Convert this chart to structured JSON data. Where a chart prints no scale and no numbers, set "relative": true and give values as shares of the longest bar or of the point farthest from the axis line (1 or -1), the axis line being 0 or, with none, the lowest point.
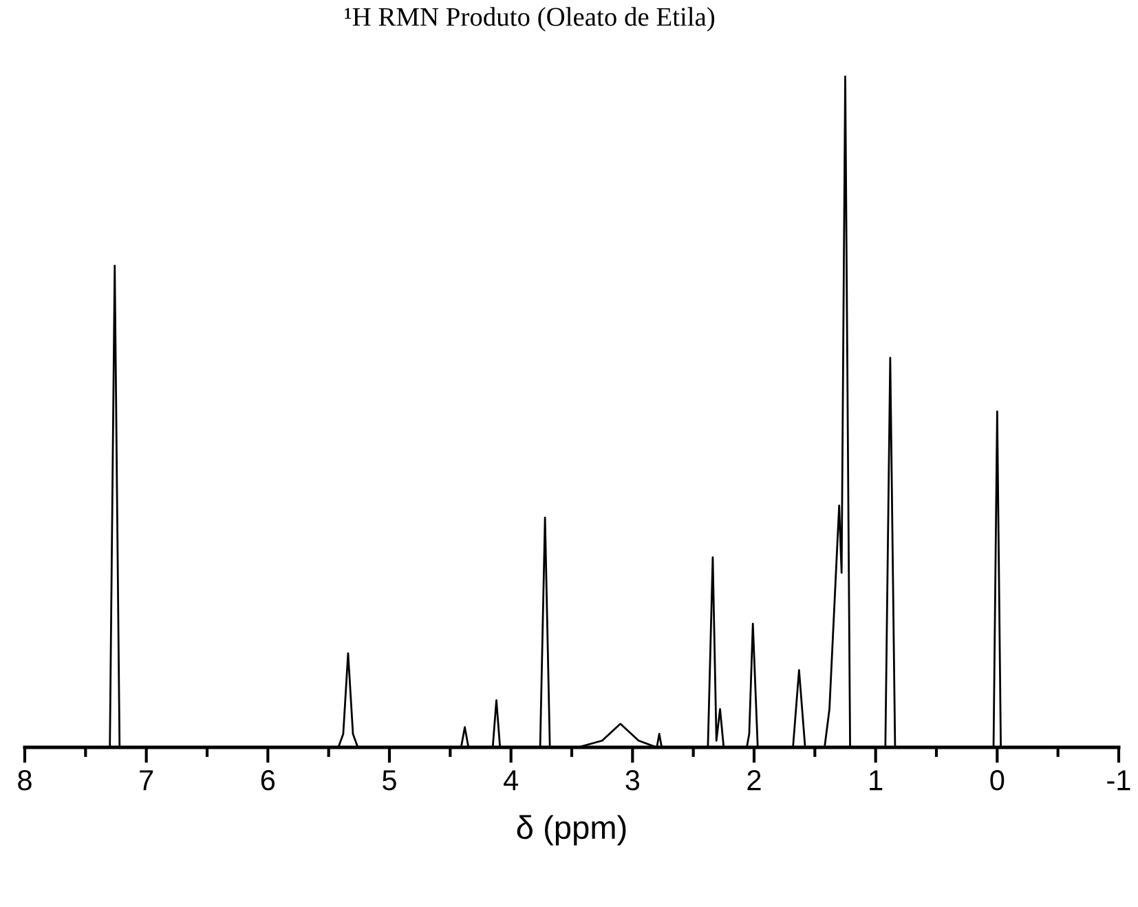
{
  "chart_data": {
    "type": "line",
    "title": "¹H RMN Produto (Oleato de Etila)",
    "xlabel": "δ (ppm)",
    "relative": true,
    "color": "#000000",
    "x": [
      8.0,
      7.3,
      7.26,
      7.22,
      5.42,
      5.38,
      5.34,
      5.3,
      5.26,
      4.41,
      4.38,
      4.35,
      4.15,
      4.12,
      4.09,
      3.76,
      3.72,
      3.68,
      3.45,
      3.25,
      3.1,
      2.95,
      2.8,
      2.78,
      2.76,
      2.38,
      2.34,
      2.31,
      2.28,
      2.25,
      2.06,
      2.04,
      2.01,
      1.97,
      1.68,
      1.63,
      1.58,
      1.42,
      1.38,
      1.3,
      1.28,
      1.25,
      1.21,
      0.92,
      0.88,
      0.84,
      0.03,
      0.0,
      -0.03,
      -0.95
    ],
    "values": [
      0,
      0,
      0.717,
      0,
      0,
      0.02,
      0.14,
      0.02,
      0,
      0,
      0.03,
      0,
      0,
      0.07,
      0,
      0,
      0.342,
      0,
      0,
      0.01,
      0.035,
      0.01,
      0,
      0.02,
      0,
      0,
      0.283,
      0.01,
      0.057,
      0,
      0,
      0.02,
      0.184,
      0,
      0,
      0.115,
      0,
      0,
      0.057,
      0.36,
      0.26,
      1.0,
      0,
      0,
      0.58,
      0,
      0,
      0.5,
      0,
      0
    ],
    "xlim": [
      8,
      -1
    ],
    "xticks": [
      8,
      {
        "value": 7.5,
        "label": null
      },
      7,
      {
        "value": 6.5,
        "label": null
      },
      6,
      {
        "value": 5.5,
        "label": null
      },
      5,
      {
        "value": 4.5,
        "label": null
      },
      4,
      {
        "value": 3.5,
        "label": null
      },
      3,
      {
        "value": 2.5,
        "label": null
      },
      2,
      {
        "value": 1.5,
        "label": null
      },
      1,
      {
        "value": 0.5,
        "label": null
      },
      0,
      {
        "value": -0.5,
        "label": null
      },
      -1
    ],
    "tick_labels": "x",
    "grid": false,
    "legend": false,
    "marker": "none",
    "line_style": "solid"
  }
}
